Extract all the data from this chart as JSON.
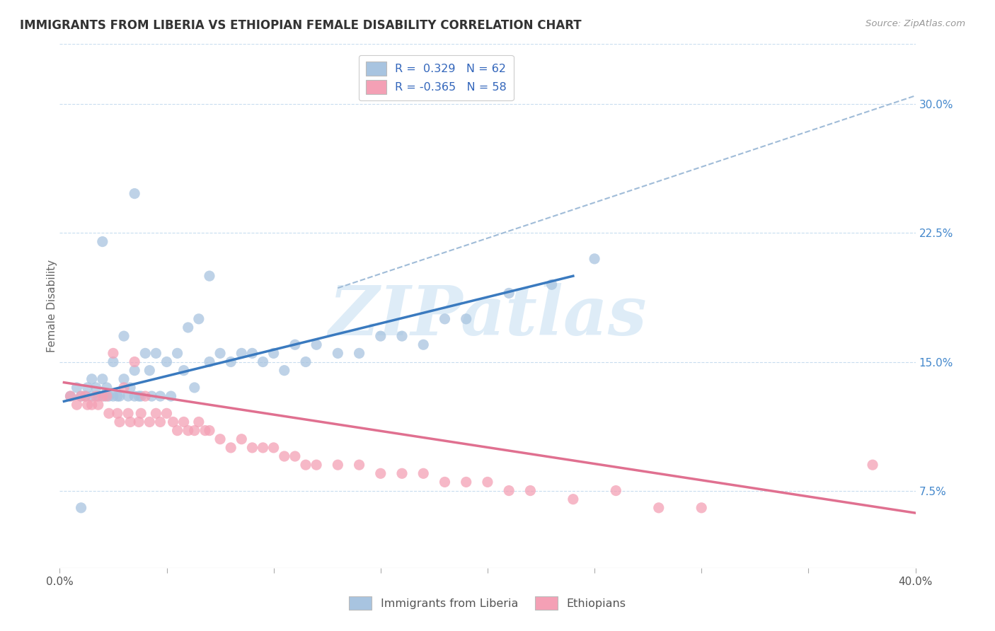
{
  "title": "IMMIGRANTS FROM LIBERIA VS ETHIOPIAN FEMALE DISABILITY CORRELATION CHART",
  "source": "Source: ZipAtlas.com",
  "ylabel": "Female Disability",
  "ytick_labels": [
    "7.5%",
    "15.0%",
    "22.5%",
    "30.0%"
  ],
  "ytick_values": [
    0.075,
    0.15,
    0.225,
    0.3
  ],
  "xlim": [
    0.0,
    0.4
  ],
  "ylim": [
    0.03,
    0.335
  ],
  "legend_blue_label": "R =  0.329   N = 62",
  "legend_pink_label": "R = -0.365   N = 58",
  "legend_bottom_blue": "Immigrants from Liberia",
  "legend_bottom_pink": "Ethiopians",
  "blue_color": "#a8c4e0",
  "pink_color": "#f4a0b5",
  "blue_line_color": "#3a7abf",
  "pink_line_color": "#e07090",
  "dashed_line_color": "#a0bcd8",
  "watermark_color": "#d0e5f5",
  "watermark_text": "ZIPatlas",
  "blue_scatter_x": [
    0.005,
    0.008,
    0.01,
    0.01,
    0.012,
    0.013,
    0.015,
    0.015,
    0.017,
    0.018,
    0.02,
    0.02,
    0.021,
    0.022,
    0.023,
    0.025,
    0.025,
    0.027,
    0.028,
    0.03,
    0.03,
    0.032,
    0.033,
    0.035,
    0.035,
    0.037,
    0.038,
    0.04,
    0.042,
    0.043,
    0.045,
    0.047,
    0.05,
    0.052,
    0.055,
    0.058,
    0.06,
    0.063,
    0.065,
    0.07,
    0.075,
    0.08,
    0.085,
    0.09,
    0.095,
    0.1,
    0.105,
    0.11,
    0.115,
    0.12,
    0.13,
    0.14,
    0.15,
    0.16,
    0.17,
    0.18,
    0.19,
    0.21,
    0.23,
    0.25,
    0.035,
    0.07
  ],
  "blue_scatter_y": [
    0.13,
    0.135,
    0.13,
    0.065,
    0.13,
    0.135,
    0.14,
    0.13,
    0.135,
    0.13,
    0.22,
    0.14,
    0.13,
    0.135,
    0.13,
    0.15,
    0.13,
    0.13,
    0.13,
    0.165,
    0.14,
    0.13,
    0.135,
    0.145,
    0.13,
    0.13,
    0.13,
    0.155,
    0.145,
    0.13,
    0.155,
    0.13,
    0.15,
    0.13,
    0.155,
    0.145,
    0.17,
    0.135,
    0.175,
    0.15,
    0.155,
    0.15,
    0.155,
    0.155,
    0.15,
    0.155,
    0.145,
    0.16,
    0.15,
    0.16,
    0.155,
    0.155,
    0.165,
    0.165,
    0.16,
    0.175,
    0.175,
    0.19,
    0.195,
    0.21,
    0.248,
    0.2
  ],
  "pink_scatter_x": [
    0.005,
    0.008,
    0.01,
    0.012,
    0.013,
    0.015,
    0.017,
    0.018,
    0.02,
    0.022,
    0.023,
    0.025,
    0.027,
    0.028,
    0.03,
    0.032,
    0.033,
    0.035,
    0.037,
    0.038,
    0.04,
    0.042,
    0.045,
    0.047,
    0.05,
    0.053,
    0.055,
    0.058,
    0.06,
    0.063,
    0.065,
    0.068,
    0.07,
    0.075,
    0.08,
    0.085,
    0.09,
    0.095,
    0.1,
    0.105,
    0.11,
    0.115,
    0.12,
    0.13,
    0.14,
    0.15,
    0.16,
    0.17,
    0.18,
    0.19,
    0.2,
    0.21,
    0.22,
    0.24,
    0.26,
    0.28,
    0.3,
    0.38
  ],
  "pink_scatter_y": [
    0.13,
    0.125,
    0.13,
    0.13,
    0.125,
    0.125,
    0.13,
    0.125,
    0.13,
    0.13,
    0.12,
    0.155,
    0.12,
    0.115,
    0.135,
    0.12,
    0.115,
    0.15,
    0.115,
    0.12,
    0.13,
    0.115,
    0.12,
    0.115,
    0.12,
    0.115,
    0.11,
    0.115,
    0.11,
    0.11,
    0.115,
    0.11,
    0.11,
    0.105,
    0.1,
    0.105,
    0.1,
    0.1,
    0.1,
    0.095,
    0.095,
    0.09,
    0.09,
    0.09,
    0.09,
    0.085,
    0.085,
    0.085,
    0.08,
    0.08,
    0.08,
    0.075,
    0.075,
    0.07,
    0.075,
    0.065,
    0.065,
    0.09
  ],
  "blue_line_x": [
    0.002,
    0.24
  ],
  "blue_line_y": [
    0.127,
    0.2
  ],
  "pink_line_x": [
    0.002,
    0.4
  ],
  "pink_line_y": [
    0.138,
    0.062
  ],
  "dashed_line_x": [
    0.13,
    0.4
  ],
  "dashed_line_y": [
    0.193,
    0.305
  ]
}
